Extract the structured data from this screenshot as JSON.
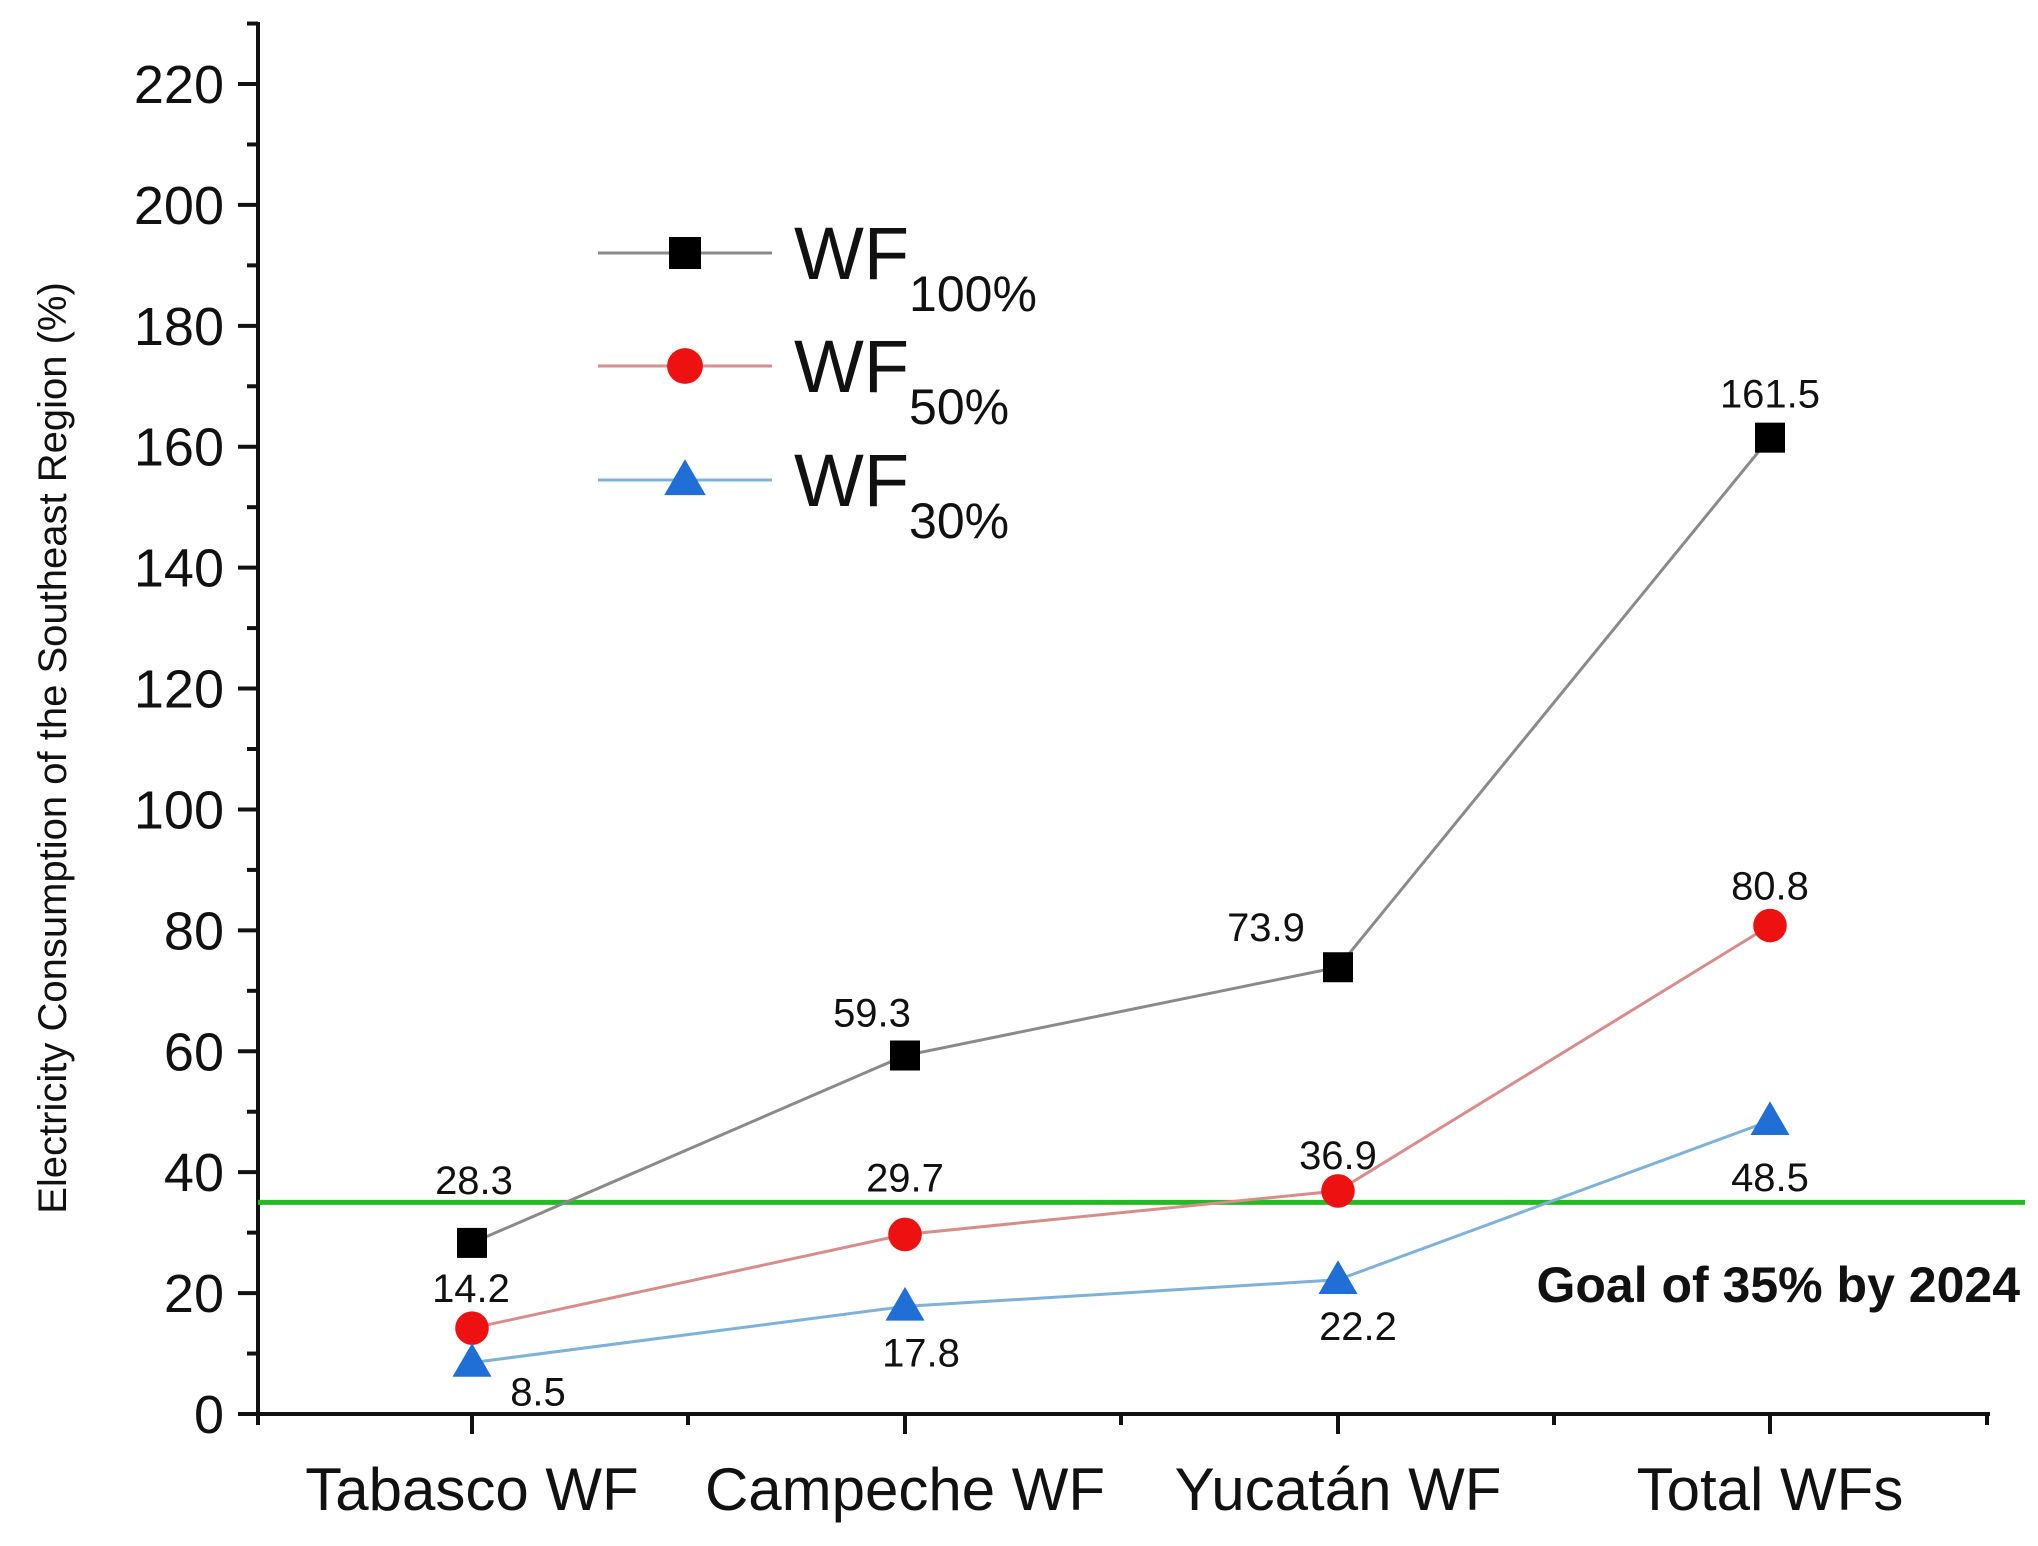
{
  "chart_data": {
    "type": "line",
    "title": "",
    "xlabel": "",
    "ylabel": "Electricity Consumption of the Southeast Region (%)",
    "ylim": [
      0,
      230
    ],
    "yticks": [
      0,
      20,
      40,
      60,
      80,
      100,
      120,
      140,
      160,
      180,
      200,
      220
    ],
    "categories": [
      "Tabasco WF",
      "Campeche WF",
      "Yucatán WF",
      "Total WFs"
    ],
    "series": [
      {
        "name": "WF",
        "subscript": "100%",
        "color": "#8a8a8a",
        "marker": "square",
        "marker_color": "#000000",
        "values": [
          28.3,
          59.3,
          73.9,
          161.5
        ],
        "labels": [
          "28.3",
          "59.3",
          "73.9",
          "161.5"
        ]
      },
      {
        "name": "WF",
        "subscript": "50%",
        "color": "#d98c8c",
        "marker": "circle",
        "marker_color": "#ee1111",
        "values": [
          14.2,
          29.7,
          36.9,
          80.8
        ],
        "labels": [
          "14.2",
          "29.7",
          "36.9",
          "80.8"
        ]
      },
      {
        "name": "WF",
        "subscript": "30%",
        "color": "#7fb2d9",
        "marker": "triangle",
        "marker_color": "#1f6fd6",
        "values": [
          8.5,
          17.8,
          22.2,
          48.5
        ],
        "labels": [
          "8.5",
          "17.8",
          "22.2",
          "48.5"
        ]
      }
    ],
    "reference_line": {
      "value": 35,
      "color": "#22bb22",
      "label": "Goal of 35% by 2024"
    },
    "legend_position": "top-left",
    "grid": false
  }
}
